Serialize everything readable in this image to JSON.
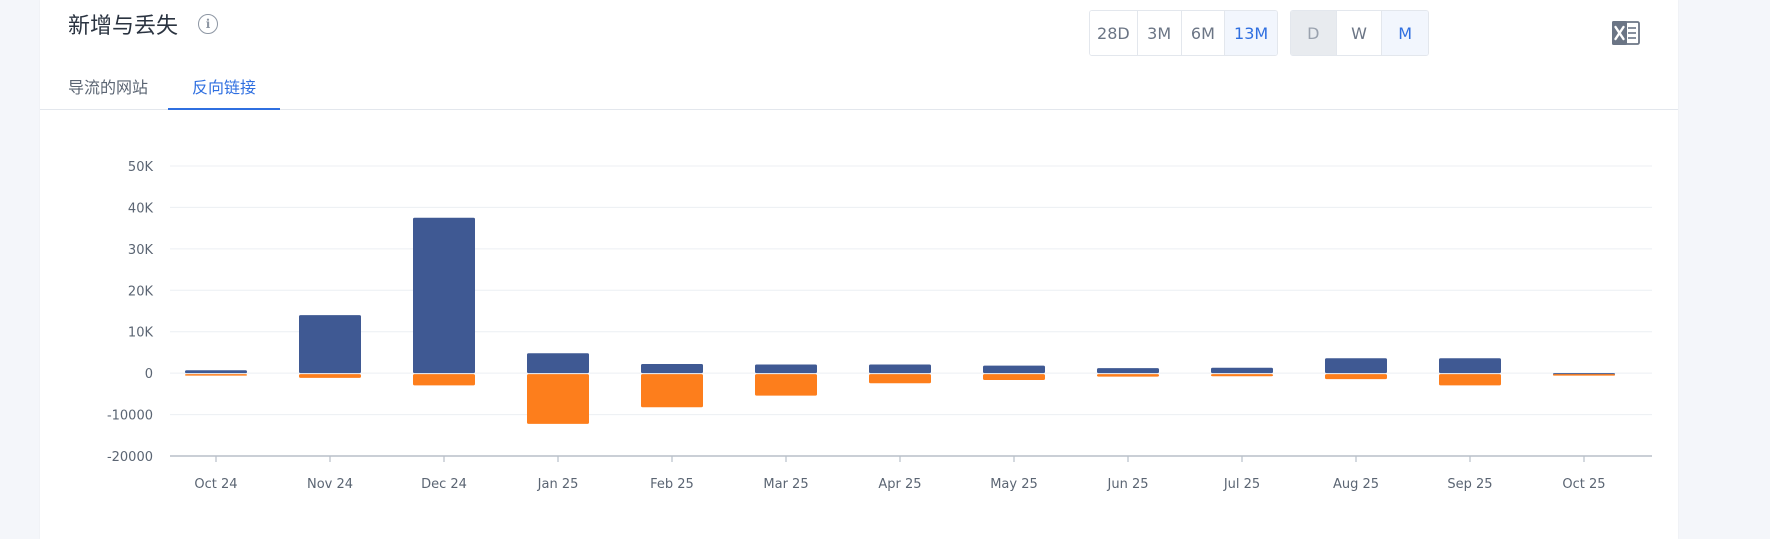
{
  "header": {
    "title": "新增与丢失",
    "tabs": [
      {
        "label": "导流的网站",
        "active": false
      },
      {
        "label": "反向链接",
        "active": true
      }
    ],
    "period_buttons": [
      {
        "label": "28D",
        "active": false
      },
      {
        "label": "3M",
        "active": false
      },
      {
        "label": "6M",
        "active": false
      },
      {
        "label": "13M",
        "active": true
      }
    ],
    "granularity_buttons": [
      {
        "label": "D",
        "disabled": true
      },
      {
        "label": "W",
        "active": false
      },
      {
        "label": "M",
        "active": true
      }
    ],
    "export_icon": "excel-icon"
  },
  "chart_data": {
    "type": "bar",
    "categories": [
      "Oct 24",
      "Nov 24",
      "Dec 24",
      "Jan 25",
      "Feb 25",
      "Mar 25",
      "Apr 25",
      "May 25",
      "Jun 25",
      "Jul 25",
      "Aug 25",
      "Sep 25",
      "Oct 25"
    ],
    "series": [
      {
        "color": "#3f5993",
        "values": [
          700,
          14000,
          37500,
          4800,
          2200,
          2100,
          2100,
          1800,
          1200,
          1300,
          3600,
          3600,
          0
        ]
      },
      {
        "color": "#fd7e1c",
        "values": [
          -200,
          -900,
          -2700,
          -12000,
          -8000,
          -5200,
          -2200,
          -1400,
          -600,
          -500,
          -1200,
          -2700,
          -100
        ]
      }
    ],
    "yticks": [
      "50K",
      "40K",
      "30K",
      "20K",
      "10K",
      "0",
      "-10000",
      "-20000"
    ],
    "ylim": [
      -20000,
      50000
    ],
    "grid": true
  }
}
